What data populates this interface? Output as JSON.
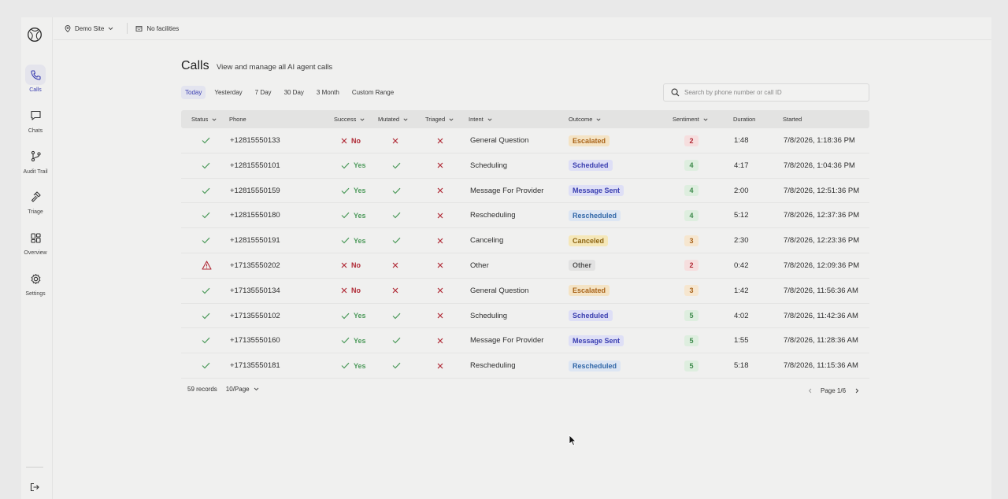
{
  "topbar": {
    "site": "Demo Site",
    "facilities": "No facilities"
  },
  "sidebar": {
    "items": [
      {
        "label": "Calls",
        "icon": "phone-icon",
        "active": true
      },
      {
        "label": "Chats",
        "icon": "chat-icon",
        "active": false
      },
      {
        "label": "Audit Trail",
        "icon": "audit-trail-icon",
        "active": false
      },
      {
        "label": "Triage",
        "icon": "hammer-icon",
        "active": false
      },
      {
        "label": "Overview",
        "icon": "grid-icon",
        "active": false
      },
      {
        "label": "Settings",
        "icon": "gear-icon",
        "active": false
      }
    ]
  },
  "header": {
    "title": "Calls",
    "subtitle": "View and manage all AI agent calls"
  },
  "filters": [
    "Today",
    "Yesterday",
    "7 Day",
    "30 Day",
    "3 Month",
    "Custom Range"
  ],
  "active_filter": "Today",
  "search": {
    "placeholder": "Search by phone number or call ID"
  },
  "table": {
    "columns": [
      "Status",
      "Phone",
      "Success",
      "Mutated",
      "Triaged",
      "Intent",
      "Outcome",
      "Sentiment",
      "Duration",
      "Started"
    ],
    "rows": [
      {
        "status": "ok",
        "phone": "+12815550133",
        "success": "No",
        "mutated": false,
        "triaged": false,
        "intent": "General Question",
        "outcome": "Escalated",
        "sentiment": "2",
        "duration": "1:48",
        "started": "7/8/2026, 1:18:36 PM"
      },
      {
        "status": "ok",
        "phone": "+12815550101",
        "success": "Yes",
        "mutated": true,
        "triaged": false,
        "intent": "Scheduling",
        "outcome": "Scheduled",
        "sentiment": "4",
        "duration": "4:17",
        "started": "7/8/2026, 1:04:36 PM"
      },
      {
        "status": "ok",
        "phone": "+12815550159",
        "success": "Yes",
        "mutated": true,
        "triaged": false,
        "intent": "Message For Provider",
        "outcome": "Message Sent",
        "sentiment": "4",
        "duration": "2:00",
        "started": "7/8/2026, 12:51:36 PM"
      },
      {
        "status": "ok",
        "phone": "+12815550180",
        "success": "Yes",
        "mutated": true,
        "triaged": false,
        "intent": "Rescheduling",
        "outcome": "Rescheduled",
        "sentiment": "4",
        "duration": "5:12",
        "started": "7/8/2026, 12:37:36 PM"
      },
      {
        "status": "ok",
        "phone": "+12815550191",
        "success": "Yes",
        "mutated": true,
        "triaged": false,
        "intent": "Canceling",
        "outcome": "Canceled",
        "sentiment": "3",
        "duration": "2:30",
        "started": "7/8/2026, 12:23:36 PM"
      },
      {
        "status": "warning",
        "phone": "+17135550202",
        "success": "No",
        "mutated": false,
        "triaged": false,
        "intent": "Other",
        "outcome": "Other",
        "sentiment": "2",
        "duration": "0:42",
        "started": "7/8/2026, 12:09:36 PM"
      },
      {
        "status": "ok",
        "phone": "+17135550134",
        "success": "No",
        "mutated": false,
        "triaged": false,
        "intent": "General Question",
        "outcome": "Escalated",
        "sentiment": "3",
        "duration": "1:42",
        "started": "7/8/2026, 11:56:36 AM"
      },
      {
        "status": "ok",
        "phone": "+17135550102",
        "success": "Yes",
        "mutated": true,
        "triaged": false,
        "intent": "Scheduling",
        "outcome": "Scheduled",
        "sentiment": "5",
        "duration": "4:02",
        "started": "7/8/2026, 11:42:36 AM"
      },
      {
        "status": "ok",
        "phone": "+17135550160",
        "success": "Yes",
        "mutated": true,
        "triaged": false,
        "intent": "Message For Provider",
        "outcome": "Message Sent",
        "sentiment": "5",
        "duration": "1:55",
        "started": "7/8/2026, 11:28:36 AM"
      },
      {
        "status": "ok",
        "phone": "+17135550181",
        "success": "Yes",
        "mutated": true,
        "triaged": false,
        "intent": "Rescheduling",
        "outcome": "Rescheduled",
        "sentiment": "5",
        "duration": "5:18",
        "started": "7/8/2026, 11:15:36 AM"
      }
    ]
  },
  "footer": {
    "records": "59 records",
    "page_size": "10/Page",
    "page_info": "Page 1/6"
  },
  "colors": {
    "accent": "#3b3fb0",
    "success_green": "#4d9a5b",
    "fail_red": "#b02a36",
    "escalated_bg": "#f4e3c4",
    "escalated_fg": "#a9641a",
    "scheduled_bg": "#dedff6",
    "scheduled_fg": "#3b3fb0",
    "message_bg": "#dedff6",
    "message_fg": "#3b3fb0",
    "rescheduled_bg": "#dde6f3",
    "rescheduled_fg": "#3268a8",
    "canceled_bg": "#f5e7b8",
    "canceled_fg": "#8c6412",
    "other_bg": "#e2e2e2",
    "other_fg": "#555555",
    "sentiment_low_bg": "#f6dede",
    "sentiment_low_fg": "#b02a36",
    "sentiment_mid_bg": "#f6e6cf",
    "sentiment_mid_fg": "#a8631b",
    "sentiment_high_bg": "#deeedf",
    "sentiment_high_fg": "#3f8a4c"
  }
}
